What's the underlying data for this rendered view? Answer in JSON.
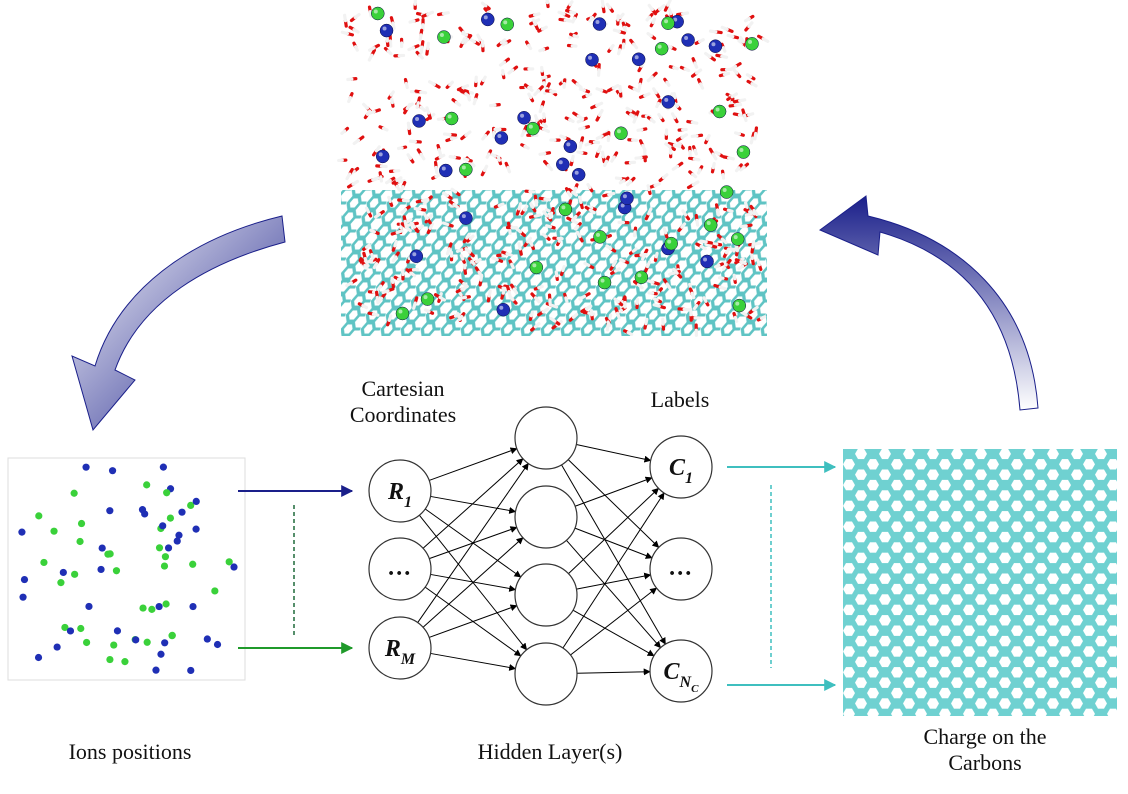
{
  "labels": {
    "cartesian_line1": "Cartesian",
    "cartesian_line2": "Coordinates",
    "labels_heading": "Labels",
    "ions_positions": "Ions positions",
    "hidden_layers": "Hidden Layer(s)",
    "charge_line1": "Charge on the",
    "charge_line2": "Carbons"
  },
  "input_nodes": [
    {
      "main": "R",
      "sub": "1"
    },
    {
      "main": "…",
      "sub": ""
    },
    {
      "main": "R",
      "sub": "M"
    }
  ],
  "hidden_node_count": 4,
  "output_nodes": [
    {
      "main": "C",
      "sub": "1",
      "subsub": ""
    },
    {
      "main": "…",
      "sub": "",
      "subsub": ""
    },
    {
      "main": "C",
      "sub": "N",
      "subsub": "C"
    }
  ],
  "colors": {
    "arrow_blue_dark": "#1a1f8a",
    "arrow_green": "#1f9a2a",
    "arrow_teal": "#3fbfbf",
    "ion_blue": "#1f2fb5",
    "ion_green": "#3ad13a",
    "carbon": "#6fd1d1",
    "water_red": "#e01010",
    "water_white": "#f2f2f2"
  }
}
